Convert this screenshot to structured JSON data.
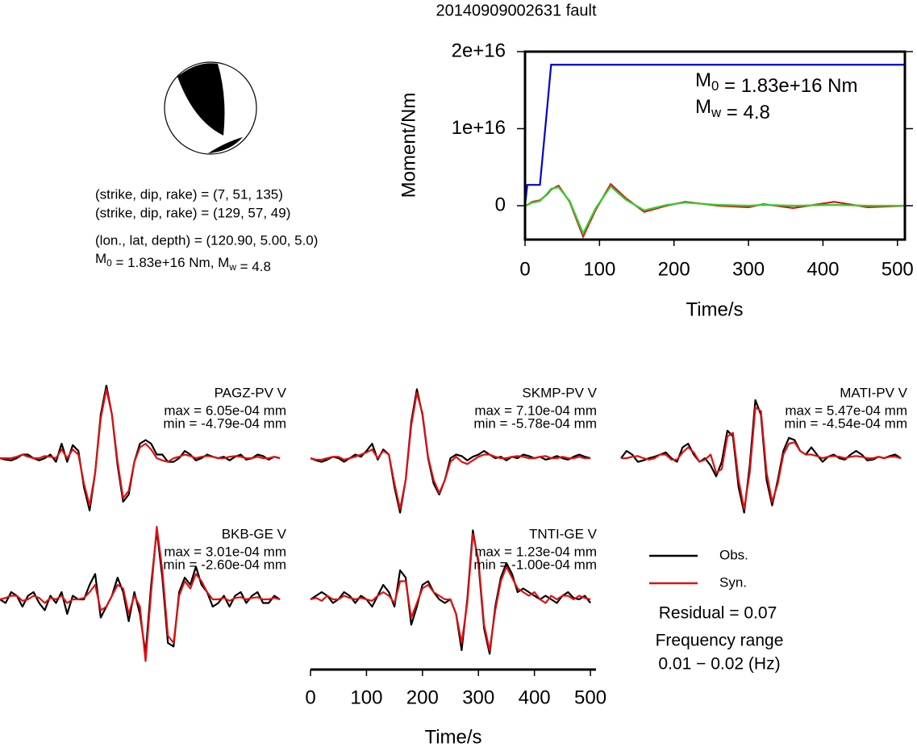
{
  "title": "20140909002631 fault",
  "focal_mechanism": {
    "lines": [
      "(strike, dip, rake) = (7, 51, 135)",
      "(strike, dip, rake) = (129, 57, 49)",
      "(lon., lat, depth) = (120.90, 5.00, 5.0)"
    ],
    "moment_line": [
      {
        "text": "M"
      },
      {
        "sub": "0"
      },
      {
        "text": " = 1.83e+16 Nm, M"
      },
      {
        "sub": "w"
      },
      {
        "text": " = 4.8"
      }
    ]
  },
  "chart_data": [
    {
      "type": "line",
      "xlabel": "Time/s",
      "ylabel": "Moment/Nm",
      "x": [
        0,
        3,
        10,
        20,
        30,
        35,
        45,
        60,
        78,
        95,
        115,
        135,
        160,
        190,
        215,
        260,
        300,
        320,
        360,
        415,
        460,
        510
      ],
      "xlim": [
        0,
        510
      ],
      "xticks": [
        0,
        100,
        200,
        300,
        400,
        500
      ],
      "ylim": [
        -4400000000000000.0,
        2e+16
      ],
      "yticks": [
        {
          "value": 0,
          "label": "0"
        },
        {
          "value": 1e+16,
          "label": "1e+16"
        },
        {
          "value": 2e+16,
          "label": "2e+16"
        }
      ],
      "series": [
        {
          "color": "#0000d0",
          "values": [
            0,
            2700000000000000.0,
            2700000000000000.0,
            2700000000000000.0,
            1.3e+16,
            1.83e+16,
            1.83e+16,
            1.83e+16,
            1.83e+16,
            1.83e+16,
            1.83e+16,
            1.83e+16,
            1.83e+16,
            1.83e+16,
            1.83e+16,
            1.83e+16,
            1.83e+16,
            1.83e+16,
            1.83e+16,
            1.83e+16,
            1.83e+16,
            1.83e+16
          ]
        },
        {
          "color": "#e01010",
          "values": [
            0,
            100000000000000.0,
            500000000000000.0,
            700000000000000.0,
            1500000000000000.0,
            2100000000000000.0,
            2600000000000000.0,
            500000000000000.0,
            -4000000000000000.0,
            -500000000000000.0,
            2800000000000000.0,
            1000000000000000.0,
            -800000000000000.0,
            0,
            500000000000000.0,
            0,
            -200000000000000.0,
            200000000000000.0,
            -300000000000000.0,
            500000000000000.0,
            -200000000000000.0,
            0
          ]
        },
        {
          "color": "#30d030",
          "values": [
            0,
            100000000000000.0,
            400000000000000.0,
            600000000000000.0,
            1600000000000000.0,
            2200000000000000.0,
            2400000000000000.0,
            600000000000000.0,
            -3600000000000000.0,
            -300000000000000.0,
            2500000000000000.0,
            800000000000000.0,
            -600000000000000.0,
            100000000000000.0,
            400000000000000.0,
            100000000000000.0,
            0,
            100000000000000.0,
            0,
            100000000000000.0,
            0,
            0
          ]
        }
      ],
      "annotations": [
        [
          {
            "text": "M"
          },
          {
            "sub": "0"
          },
          {
            "text": " = 1.83e+16 Nm"
          }
        ],
        [
          {
            "text": "M"
          },
          {
            "sub": "w"
          },
          {
            "text": " = 4.8"
          }
        ]
      ]
    },
    {
      "type": "waveforms",
      "xlabel": "Time/s",
      "x": [
        0,
        10,
        20,
        30,
        40,
        50,
        60,
        70,
        80,
        90,
        100,
        110,
        120,
        130,
        140,
        150,
        160,
        170,
        180,
        190,
        200,
        210,
        220,
        230,
        240,
        250,
        260,
        270,
        280,
        290,
        300,
        310,
        320,
        330,
        340,
        350,
        360,
        370,
        380,
        390,
        400,
        410,
        420,
        430,
        440,
        450,
        460,
        470,
        480,
        490,
        500
      ],
      "xlim": [
        0,
        510
      ],
      "xticks": [
        0,
        100,
        200,
        300,
        400,
        500
      ],
      "ylim": [
        -1,
        1
      ],
      "series": [
        {
          "name": "Obs.",
          "color": "#000000"
        },
        {
          "name": "Syn.",
          "color": "#e01010"
        }
      ],
      "residual": "Residual = 0.07",
      "frequency_label": "Frequency range",
      "frequency_range": "0.01 − 0.02 (Hz)",
      "panels": [
        {
          "station": "PAGZ-PV V",
          "max": "max = 6.05e-04 mm",
          "min": "min = -4.79e-04 mm",
          "obs": [
            0,
            -0.02,
            -0.03,
            0,
            0.05,
            0.05,
            0,
            -0.03,
            0,
            0.05,
            -0.05,
            0.2,
            -0.05,
            0.18,
            0.1,
            -0.4,
            -0.72,
            -0.2,
            0.6,
            1.0,
            0.6,
            -0.1,
            -0.6,
            -0.5,
            -0.05,
            0.2,
            0.25,
            0.2,
            0.05,
            0.05,
            -0.05,
            -0.05,
            0,
            0.1,
            0.05,
            -0.03,
            0,
            0.05,
            0.02,
            0,
            0.02,
            -0.03,
            0.02,
            0.05,
            -0.02,
            0,
            0.05,
            0.03,
            -0.02,
            0.02,
            0
          ],
          "syn": [
            0,
            0,
            0,
            0.02,
            0.05,
            0.02,
            0,
            0,
            0.03,
            0.02,
            0,
            0.12,
            0,
            0.12,
            0.05,
            -0.35,
            -0.65,
            -0.2,
            0.55,
            0.95,
            0.6,
            -0.05,
            -0.55,
            -0.45,
            -0.05,
            0.15,
            0.2,
            0.12,
            0,
            -0.03,
            -0.05,
            0,
            0.02,
            0.05,
            0.03,
            0,
            0.02,
            0.03,
            0.02,
            0,
            0,
            0.02,
            0.03,
            0.02,
            0,
            0,
            0.02,
            0,
            0,
            0.02,
            0
          ]
        },
        {
          "station": "SKMP-PV V",
          "max": "max = 7.10e-04 mm",
          "min": "min = -5.78e-04 mm",
          "obs": [
            0,
            -0.03,
            -0.05,
            -0.02,
            0.02,
            0,
            -0.05,
            0,
            0.05,
            0.02,
            0.1,
            0.2,
            -0.02,
            0.12,
            0.05,
            -0.4,
            -0.75,
            -0.3,
            0.5,
            0.95,
            0.6,
            0,
            -0.35,
            -0.5,
            -0.3,
            0,
            0.05,
            0.03,
            -0.03,
            0.02,
            0.05,
            0.1,
            0.05,
            0,
            0.02,
            -0.03,
            0.02,
            0,
            0.05,
            0.03,
            0,
            0.02,
            -0.02,
            0,
            0.03,
            0,
            -0.02,
            0.02,
            0.05,
            0.02,
            0
          ],
          "syn": [
            0,
            -0.02,
            -0.02,
            0,
            0.02,
            0.02,
            -0.02,
            0,
            0.02,
            0.05,
            0.08,
            0.12,
            0,
            0.1,
            0.05,
            -0.35,
            -0.7,
            -0.3,
            0.45,
            0.9,
            0.62,
            0.02,
            -0.3,
            -0.48,
            -0.3,
            -0.05,
            0.02,
            -0.05,
            -0.08,
            -0.03,
            0.02,
            0.05,
            0.05,
            0.02,
            0,
            0,
            0.02,
            0.03,
            0.02,
            0,
            0,
            0.02,
            0.03,
            0,
            0,
            0.02,
            0,
            0,
            0.02,
            0,
            0
          ]
        },
        {
          "station": "MATI-PV V",
          "max": "max = 5.47e-04 mm",
          "min": "min = -4.54e-04 mm",
          "obs": [
            0,
            0.1,
            0.05,
            -0.05,
            -0.03,
            0,
            0.02,
            0.05,
            0.08,
            0,
            -0.05,
            0.15,
            0.2,
            0.05,
            -0.05,
            0,
            -0.1,
            -0.25,
            -0.05,
            0.38,
            0.3,
            -0.4,
            -0.75,
            -0.1,
            0.8,
            0.6,
            -0.3,
            -0.65,
            -0.3,
            0.1,
            0.28,
            0.25,
            0.1,
            0.05,
            0.15,
            0.05,
            -0.05,
            0.02,
            0.05,
            0,
            -0.02,
            0.05,
            0.1,
            0.05,
            -0.03,
            -0.02,
            0.02,
            0,
            0.03,
            0.05,
            0
          ],
          "syn": [
            0,
            0,
            0.02,
            0.03,
            0,
            -0.02,
            0,
            0.05,
            0.05,
            -0.02,
            -0.02,
            0.08,
            0.15,
            0.08,
            -0.05,
            -0.02,
            0.05,
            -0.2,
            -0.15,
            0.3,
            0.35,
            -0.3,
            -0.7,
            -0.2,
            0.7,
            0.65,
            -0.2,
            -0.6,
            -0.35,
            0.05,
            0.2,
            0.22,
            0.1,
            0.05,
            0.05,
            0.03,
            0,
            0.02,
            0.03,
            0.02,
            0,
            0.02,
            0.03,
            0.02,
            0,
            0,
            0.02,
            0,
            0.02,
            0.02,
            0
          ]
        },
        {
          "station": "BKB-GE V",
          "max": "max = 3.01e-04 mm",
          "min": "min = -2.60e-04 mm",
          "obs": [
            0,
            -0.05,
            0.1,
            0.05,
            -0.1,
            0.05,
            0.1,
            -0.05,
            -0.15,
            0.05,
            -0.05,
            0.1,
            -0.2,
            0.05,
            0,
            0,
            0.2,
            0.35,
            -0.25,
            -0.1,
            0.05,
            0.3,
            0.1,
            -0.3,
            0.1,
            -0.2,
            -0.75,
            0.2,
            0.95,
            0.3,
            -0.6,
            -0.65,
            0.1,
            0.3,
            0.2,
            0.45,
            0.2,
            0.1,
            -0.1,
            -0.05,
            0.05,
            -0.1,
            0.05,
            0.1,
            -0.05,
            0.05,
            0.1,
            -0.05,
            -0.05,
            0.05,
            0
          ],
          "syn": [
            0,
            0.02,
            0.05,
            0.05,
            -0.02,
            0,
            0.05,
            0.02,
            -0.05,
            0.02,
            0,
            0.05,
            -0.05,
            0,
            0,
            0.02,
            0.1,
            0.2,
            -0.15,
            -0.1,
            0.05,
            0.2,
            0.15,
            -0.2,
            0.05,
            -0.1,
            -0.85,
            0.1,
            1.0,
            0.4,
            -0.5,
            -0.6,
            0.05,
            0.25,
            0.15,
            0.35,
            0.25,
            0.1,
            0,
            0,
            0.02,
            -0.02,
            0.02,
            0.03,
            0,
            0.02,
            0.03,
            0,
            0,
            0.02,
            0
          ]
        },
        {
          "station": "TNTI-GE V",
          "max": "max = 1.23e-04 mm",
          "min": "min = -1.00e-04 mm",
          "obs": [
            0,
            0.05,
            0.1,
            0.05,
            -0.05,
            0,
            0.1,
            0.05,
            -0.05,
            0.05,
            0,
            -0.1,
            0.05,
            0.2,
            0.1,
            -0.1,
            0.4,
            0.3,
            -0.35,
            -0.1,
            0.2,
            0.25,
            0.1,
            0,
            -0.05,
            0,
            -0.2,
            -0.7,
            0,
            0.95,
            0.5,
            -0.4,
            -0.75,
            -0.1,
            0.3,
            0.5,
            0.35,
            0.1,
            0.15,
            0.1,
            0.05,
            0,
            0.05,
            0,
            -0.05,
            0.05,
            0.1,
            0.02,
            0,
            0.05,
            -0.05
          ],
          "syn": [
            0,
            0.02,
            -0.02,
            0.05,
            0,
            0,
            0.05,
            0.02,
            0,
            0.02,
            0,
            -0.02,
            0.05,
            0.1,
            0.05,
            -0.05,
            0.25,
            0.25,
            -0.25,
            -0.05,
            0.15,
            0.2,
            0.1,
            0.05,
            0,
            0,
            -0.2,
            -0.6,
            -0.05,
            0.9,
            0.55,
            -0.35,
            -0.7,
            -0.15,
            0.25,
            0.45,
            0.3,
            0.15,
            0.1,
            0.05,
            0.1,
            0,
            -0.05,
            0.05,
            0,
            0.05,
            0.05,
            0,
            0.05,
            0.02,
            0
          ]
        }
      ]
    }
  ]
}
